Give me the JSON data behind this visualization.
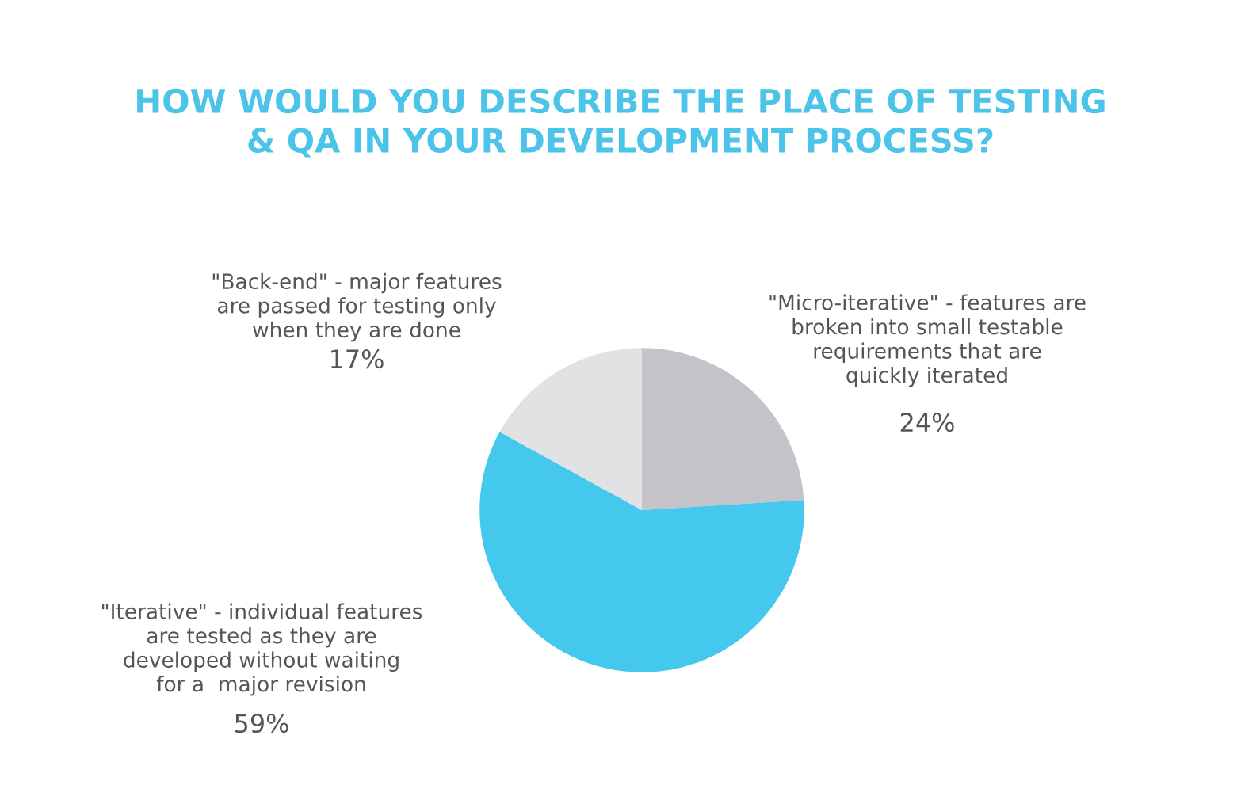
{
  "chart_data": {
    "type": "pie",
    "title": "HOW WOULD YOU DESCRIBE THE PLACE OF TESTING\n& QA IN YOUR DEVELOPMENT PROCESS?",
    "categories": [
      "\"Micro-iterative\" - features are\nbroken into small testable\nrequirements that are\nquickly iterated",
      "\"Iterative\" - individual features\nare tested as they are\ndeveloped without waiting\nfor a  major revision",
      "\"Back-end\" - major features\nare passed for testing only\nwhen they are done"
    ],
    "values": [
      24,
      59,
      17
    ],
    "value_labels": [
      "24%",
      "59%",
      "17%"
    ],
    "colors": [
      "#c4c4c8",
      "#45c8ee",
      "#e2e2e5"
    ]
  }
}
